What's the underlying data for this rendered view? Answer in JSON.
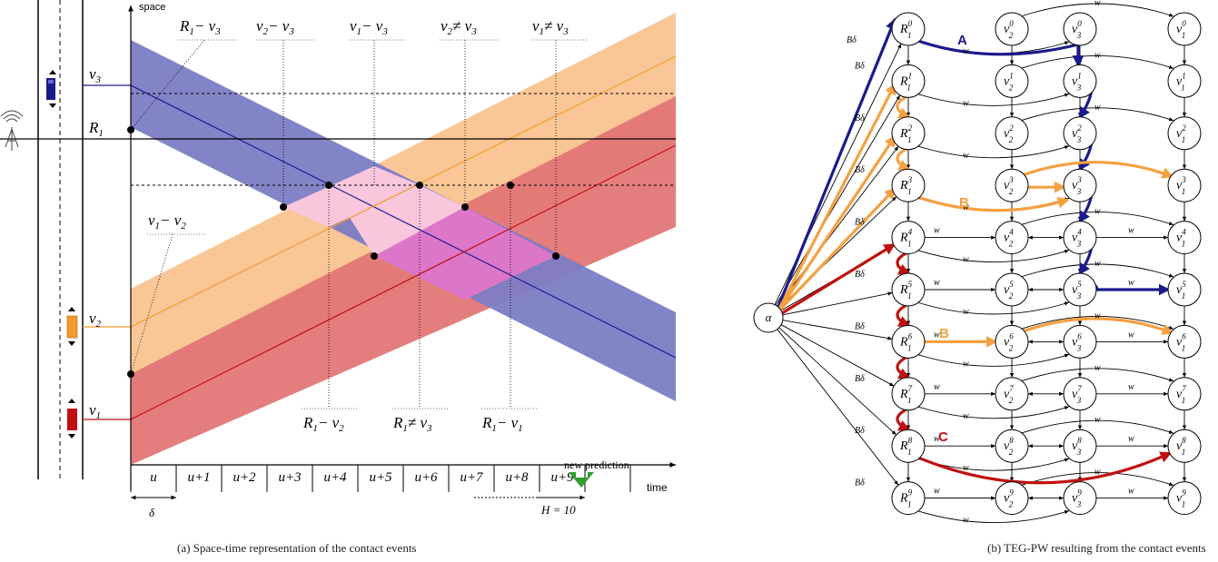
{
  "panel_a": {
    "caption": "(a) Space-time representation of the contact events",
    "axis_space": "space",
    "axis_time": "time",
    "new_prediction": "new prediction",
    "horizon": "H = 10",
    "delta": "δ",
    "ticks": [
      "u",
      "u+1",
      "u+2",
      "u+3",
      "u+4",
      "u+5",
      "u+6",
      "u+7",
      "u+8",
      "u+9"
    ],
    "vehicles": [
      "v3",
      "R1",
      "v2",
      "v1"
    ],
    "contacts_top": [
      "R1−v3",
      "v2−v3",
      "v1−v3",
      "v2≠v3",
      "v1≠v3"
    ],
    "contacts_mid": [
      "v1−v2"
    ],
    "contacts_bottom": [
      "R1−v2",
      "R1≠v3",
      "R1−v1"
    ],
    "colors": {
      "v3": "#7c7cc4",
      "v2": "#f8c08c",
      "v1": "#e37676",
      "overlap_pink": "#f9c6dc",
      "overlap_magenta": "#dc76c8"
    }
  },
  "panel_b": {
    "caption": "(b) TEG-PW resulting from the contact events",
    "source": "α",
    "edge_w": "w",
    "edge_bdelta": "Bδ",
    "path_labels": {
      "A": "A",
      "B1": "B",
      "B2": "B",
      "C": "C"
    },
    "path_colors": {
      "A": "#1a1a8c",
      "B": "#f5a040",
      "C": "#c01010"
    },
    "columns": [
      "R1",
      "v2",
      "v3",
      "v1"
    ],
    "rows": [
      0,
      1,
      2,
      3,
      4,
      5,
      6,
      7,
      8,
      9
    ]
  }
}
